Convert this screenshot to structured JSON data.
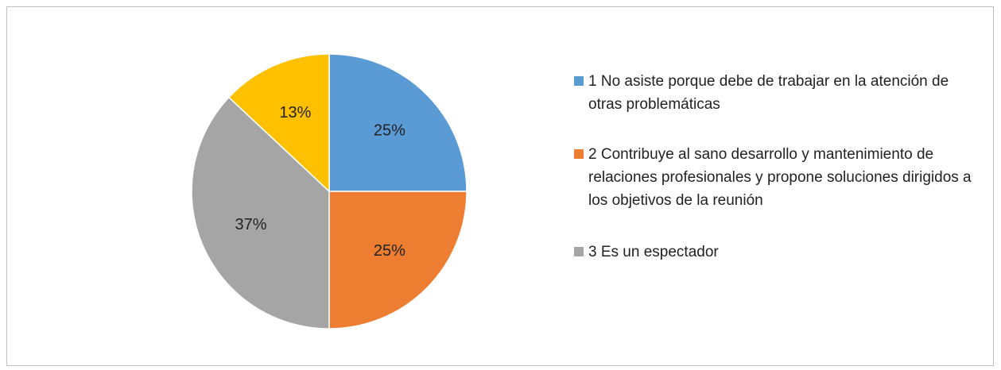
{
  "chart_data": {
    "type": "pie",
    "categories": [
      "1 No asiste porque debe de trabajar en la atención de otras problemáticas",
      "2 Contribuye al sano desarrollo y mantenimiento de relaciones profesionales y propone soluciones dirigidos a los objetivos de la reunión",
      "3 Es un espectador",
      null
    ],
    "values": [
      25,
      25,
      37,
      13
    ],
    "value_labels": [
      "25%",
      "25%",
      "37%",
      "13%"
    ],
    "colors": [
      "#5b9bd5",
      "#ed7d31",
      "#a5a5a5",
      "#ffc000"
    ],
    "legend": "right"
  }
}
